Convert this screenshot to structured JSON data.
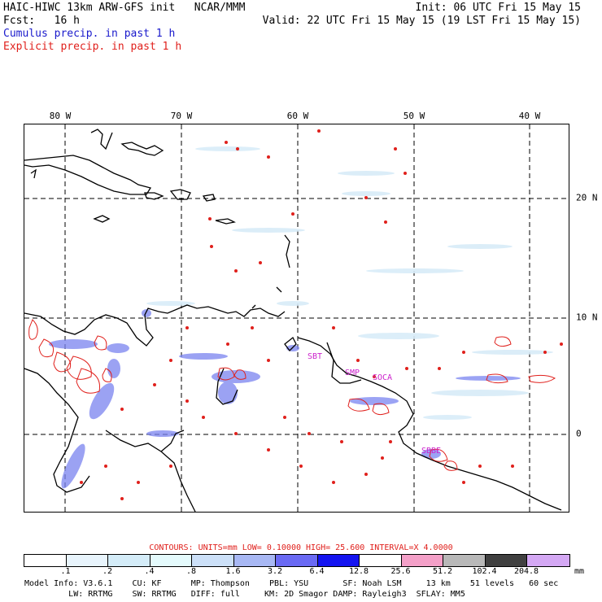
{
  "header": {
    "line1_left": "HAIC-HIWC 13km ARW-GFS init   NCAR/MMM",
    "line1_right": "Init: 06 UTC Fri 15 May 15",
    "line2_left": "Fcst:   16 h",
    "line2_right": "Valid: 22 UTC Fri 15 May 15 (19 LST Fri 15 May 15)",
    "legend_cumulus": "Cumulus precip. in past 1 h",
    "legend_explicit": "Explicit precip. in past 1 h"
  },
  "map": {
    "lon_labels": [
      "80 W",
      "70 W",
      "60 W",
      "50 W",
      "40 W"
    ],
    "lat_labels": [
      "20 N",
      "10 N",
      "0"
    ],
    "station_labels": [
      "SBT",
      "SMP",
      "SOCA",
      "SBBE"
    ],
    "colors": {
      "coast": "#000000",
      "explicit_contour": "#e0201c",
      "station": "#cc22cc"
    }
  },
  "contours_line": "CONTOURS:  UNITS=mm  LOW= 0.10000      HIGH=  25.600      INTERVAL=X  4.0000",
  "colorbar": {
    "labels": [
      ".1",
      ".2",
      ".4",
      ".8",
      "1.6",
      "3.2",
      "6.4",
      "12.8",
      "25.6",
      "51.2",
      "102.4",
      "204.8"
    ],
    "colors": [
      "#ffffff",
      "#e8f4fc",
      "#d4ecf8",
      "#e4fafc",
      "#cce0f8",
      "#a8b8f4",
      "#6a6af4",
      "#1414f0",
      "#ffffff",
      "#f4a0c8",
      "#b8b8b8",
      "#404040",
      "#d4a8f4"
    ],
    "units": "mm"
  },
  "footer": {
    "line1": "Model Info: V3.6.1    CU: KF      MP: Thompson    PBL: YSU       SF: Noah LSM     13 km    51 levels   60 sec",
    "line2": "         LW: RRTMG    SW: RRTMG   DIFF: full     KM: 2D Smagor DAMP: Rayleigh3  SFLAY: MM5"
  }
}
